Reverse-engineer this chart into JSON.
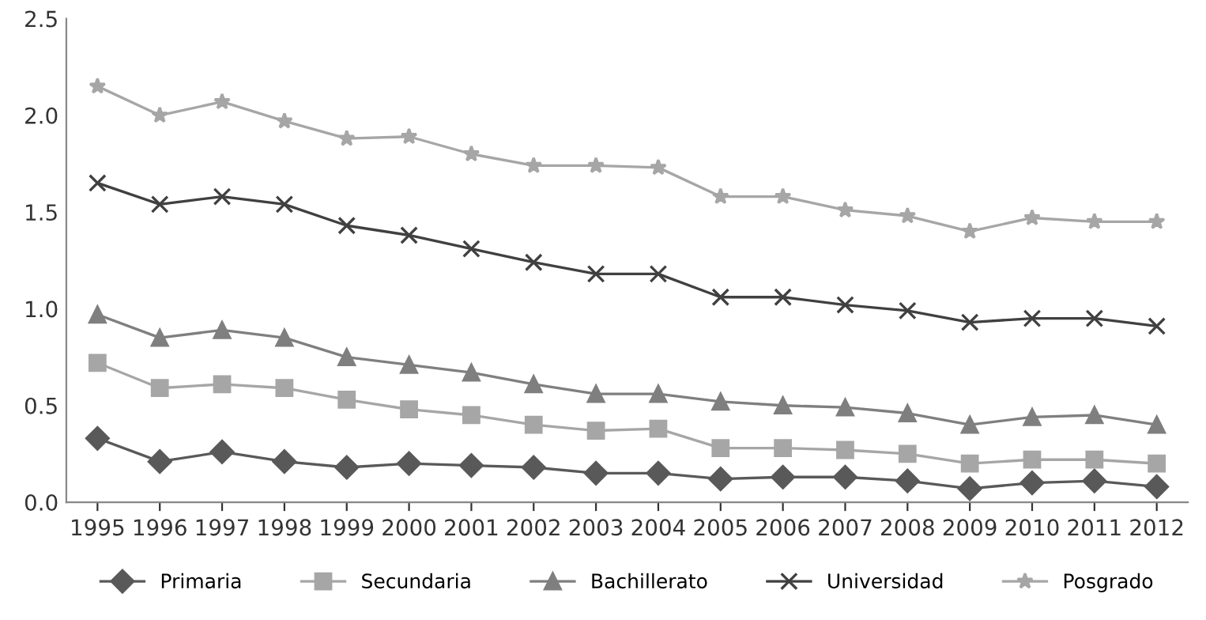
{
  "chart_data": {
    "type": "line",
    "categories": [
      "1995",
      "1996",
      "1997",
      "1998",
      "1999",
      "2000",
      "2001",
      "2002",
      "2003",
      "2004",
      "2005",
      "2006",
      "2007",
      "2008",
      "2009",
      "2010",
      "2011",
      "2012"
    ],
    "series": [
      {
        "name": "Primaria",
        "color": "#595959",
        "marker": "diamond",
        "values": [
          0.33,
          0.21,
          0.26,
          0.21,
          0.18,
          0.2,
          0.19,
          0.18,
          0.15,
          0.15,
          0.12,
          0.13,
          0.13,
          0.11,
          0.07,
          0.1,
          0.11,
          0.08
        ]
      },
      {
        "name": "Secundaria",
        "color": "#a6a6a6",
        "marker": "square",
        "values": [
          0.72,
          0.59,
          0.61,
          0.59,
          0.53,
          0.48,
          0.45,
          0.4,
          0.37,
          0.38,
          0.28,
          0.28,
          0.27,
          0.25,
          0.2,
          0.22,
          0.22,
          0.2
        ]
      },
      {
        "name": "Bachillerato",
        "color": "#7f7f7f",
        "marker": "triangle",
        "values": [
          0.97,
          0.85,
          0.89,
          0.85,
          0.75,
          0.71,
          0.67,
          0.61,
          0.56,
          0.56,
          0.52,
          0.5,
          0.49,
          0.46,
          0.4,
          0.44,
          0.45,
          0.4
        ]
      },
      {
        "name": "Universidad",
        "color": "#404040",
        "marker": "cross",
        "values": [
          1.65,
          1.54,
          1.58,
          1.54,
          1.43,
          1.38,
          1.31,
          1.24,
          1.18,
          1.18,
          1.06,
          1.06,
          1.02,
          0.99,
          0.93,
          0.95,
          0.95,
          0.91
        ]
      },
      {
        "name": "Posgrado",
        "color": "#a6a6a6",
        "marker": "star",
        "values": [
          2.15,
          2.0,
          2.07,
          1.97,
          1.88,
          1.89,
          1.8,
          1.74,
          1.74,
          1.73,
          1.58,
          1.58,
          1.51,
          1.48,
          1.4,
          1.47,
          1.45,
          1.45
        ]
      }
    ],
    "ylim": [
      0,
      2.5
    ],
    "yticks": [
      {
        "value": 0,
        "label": "0.0"
      },
      0.5,
      {
        "value": 1,
        "label": "1.0"
      },
      1.5,
      {
        "value": 2,
        "label": "2.0"
      },
      2.5
    ],
    "legend": "bottom",
    "line_style": "solid"
  }
}
